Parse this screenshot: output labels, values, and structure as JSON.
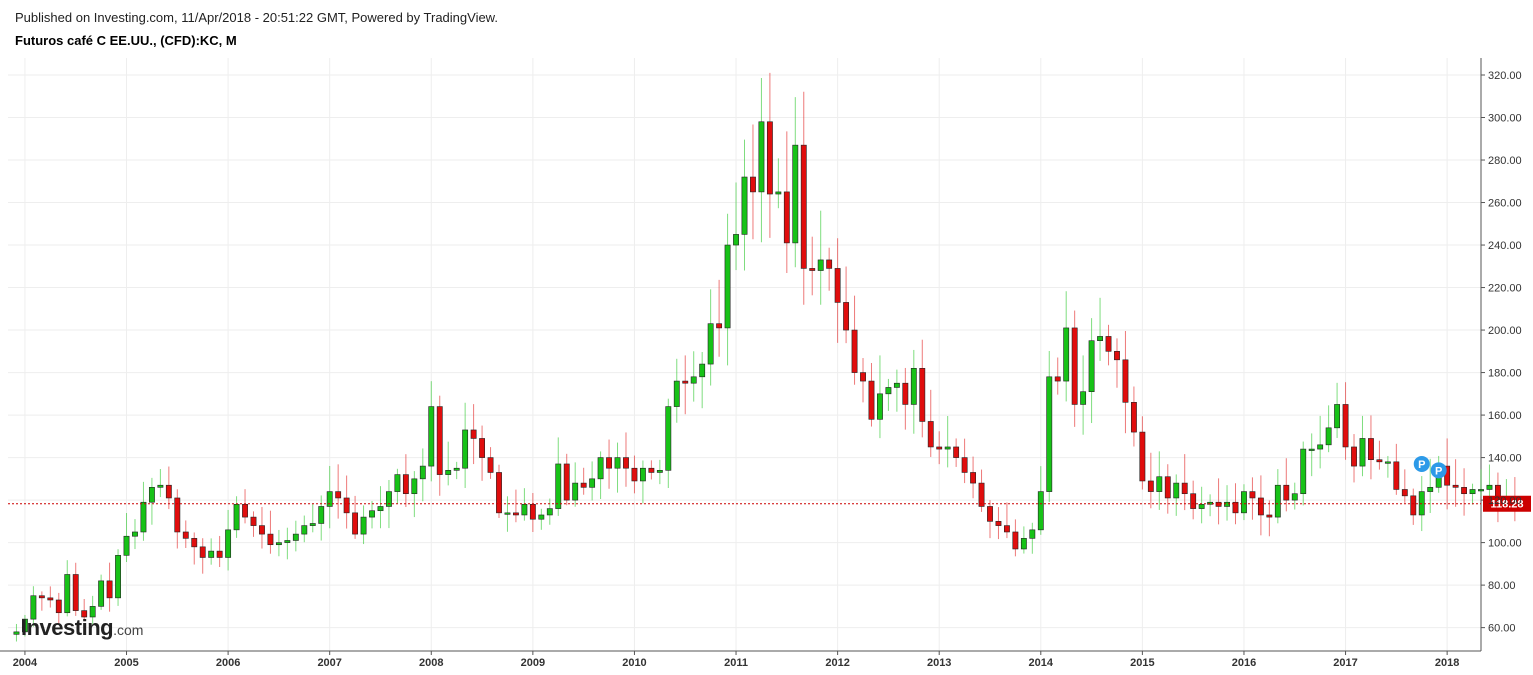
{
  "header": {
    "published": "Published on Investing.com, 11/Apr/2018 - 20:51:22 GMT, Powered by TradingView.",
    "title": "Futuros café C EE.UU., (CFD):KC, M"
  },
  "logo": {
    "brand": "Investing",
    "suffix": ".com"
  },
  "last_price": {
    "label": "118.28",
    "value": 118.28,
    "color": "#cc0000"
  },
  "markers": [
    {
      "label": "P",
      "date": "2017-10",
      "value": 137
    },
    {
      "label": "P",
      "date": "2017-12",
      "value": 134
    }
  ],
  "colors": {
    "up": "#17c217",
    "down": "#e00d0d",
    "grid": "#eeeeee",
    "marker": "#2d9ae8"
  },
  "chart_data": {
    "type": "candlestick",
    "title": "Futuros café C EE.UU., (CFD):KC, M",
    "interval": "monthly",
    "xlim": [
      "2003-11",
      "2018-05"
    ],
    "ylim": [
      49,
      328
    ],
    "x_ticks": [
      "2004",
      "2005",
      "2006",
      "2007",
      "2008",
      "2009",
      "2010",
      "2011",
      "2012",
      "2013",
      "2014",
      "2015",
      "2016",
      "2017",
      "2018"
    ],
    "y_ticks": [
      "60.00",
      "80.00",
      "100.00",
      "120.00",
      "140.00",
      "160.00",
      "180.00",
      "200.00",
      "220.00",
      "240.00",
      "260.00",
      "280.00",
      "300.00",
      "320.00"
    ],
    "start": "2003-12",
    "close": [
      58,
      64,
      75,
      74,
      73,
      67,
      85,
      68,
      65,
      70,
      82,
      74,
      94,
      103,
      105,
      119,
      126,
      127,
      121,
      105,
      102,
      98,
      93,
      96,
      93,
      106,
      118,
      112,
      108,
      104,
      99,
      100,
      101,
      104,
      108,
      109,
      117,
      124,
      121,
      114,
      104,
      112,
      115,
      117,
      124,
      132,
      123,
      130,
      136,
      164,
      132,
      134,
      135,
      153,
      149,
      140,
      133,
      114,
      114,
      113,
      118,
      111,
      113,
      116,
      137,
      120,
      128,
      126,
      130,
      140,
      135,
      140,
      135,
      129,
      135,
      133,
      134,
      164,
      176,
      175,
      178,
      184,
      203,
      201,
      240,
      245,
      272,
      265,
      298,
      264,
      265,
      241,
      287,
      229,
      228,
      233,
      229,
      213,
      200,
      180,
      176,
      158,
      170,
      173,
      175,
      165,
      182,
      157,
      145,
      144,
      145,
      140,
      133,
      128,
      117,
      110,
      108,
      105,
      97,
      102,
      106,
      124,
      178,
      176,
      201,
      165,
      171,
      195,
      197,
      190,
      186,
      166,
      152,
      129,
      124,
      131,
      121,
      128,
      123,
      116,
      118,
      119,
      117,
      119,
      114,
      124,
      121,
      113,
      112,
      127,
      120,
      123,
      144,
      144,
      146,
      154,
      165,
      145,
      136,
      149,
      139,
      138,
      138,
      125,
      122,
      113,
      124,
      126,
      136,
      127,
      126,
      123,
      125,
      125,
      127,
      120,
      121,
      118.28
    ],
    "ohlc_note": "open of each month = close of previous month; wicks extend 2–14% beyond body"
  }
}
